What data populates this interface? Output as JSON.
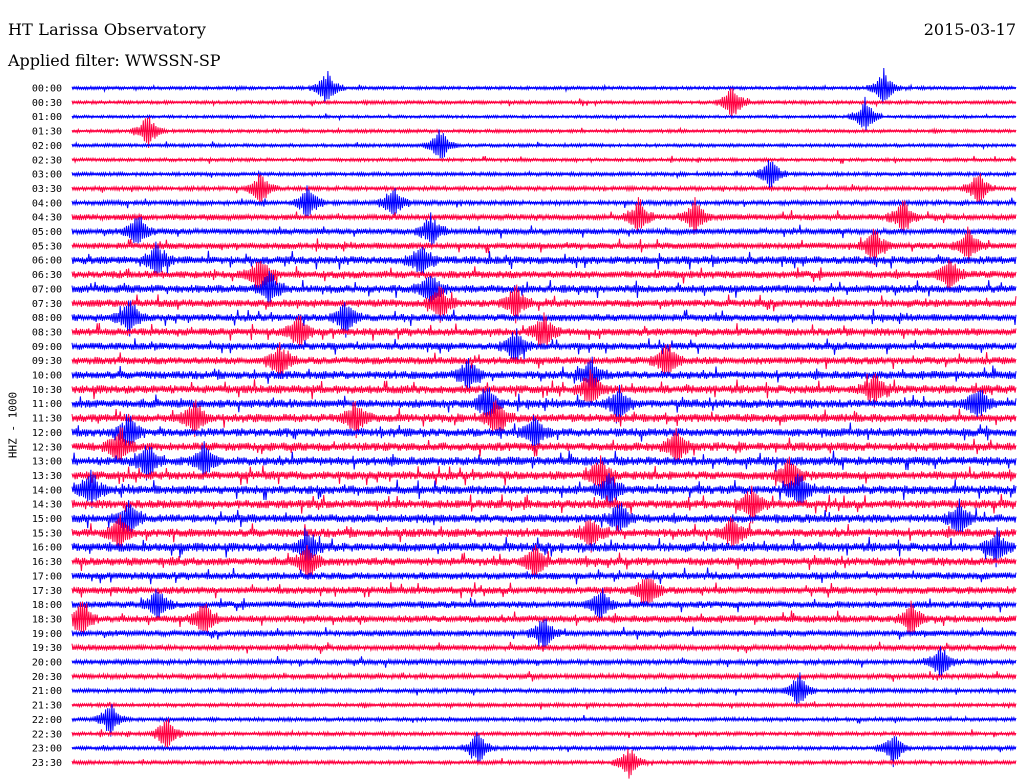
{
  "header": {
    "station": "HT Larissa Observatory",
    "date": "2015-03-17",
    "filter": "Applied filter: WWSSN-SP"
  },
  "colors": {
    "odd_trace": "#0000ff",
    "even_trace": "#ff0040",
    "background": "#ffffff"
  },
  "chart_data": {
    "type": "line",
    "kind": "helicorder",
    "channel_label": "HHZ - 1000",
    "rows": [
      {
        "time": "00:00",
        "color": "blue",
        "activity": 0.25,
        "events": [
          0.27,
          0.86
        ]
      },
      {
        "time": "00:30",
        "color": "red",
        "activity": 0.25,
        "events": [
          0.7
        ]
      },
      {
        "time": "01:00",
        "color": "blue",
        "activity": 0.2,
        "events": [
          0.84
        ]
      },
      {
        "time": "01:30",
        "color": "red",
        "activity": 0.25,
        "events": [
          0.08
        ]
      },
      {
        "time": "02:00",
        "color": "blue",
        "activity": 0.25,
        "events": [
          0.39
        ]
      },
      {
        "time": "02:30",
        "color": "red",
        "activity": 0.25,
        "events": []
      },
      {
        "time": "03:00",
        "color": "blue",
        "activity": 0.3,
        "events": [
          0.74
        ]
      },
      {
        "time": "03:30",
        "color": "red",
        "activity": 0.35,
        "events": [
          0.2,
          0.96
        ]
      },
      {
        "time": "04:00",
        "color": "blue",
        "activity": 0.4,
        "events": [
          0.25,
          0.34
        ]
      },
      {
        "time": "04:30",
        "color": "red",
        "activity": 0.55,
        "events": [
          0.6,
          0.66,
          0.88
        ]
      },
      {
        "time": "05:00",
        "color": "blue",
        "activity": 0.55,
        "events": [
          0.07,
          0.38
        ]
      },
      {
        "time": "05:30",
        "color": "red",
        "activity": 0.6,
        "events": [
          0.85,
          0.95
        ]
      },
      {
        "time": "06:00",
        "color": "blue",
        "activity": 0.8,
        "events": [
          0.09,
          0.37
        ]
      },
      {
        "time": "06:30",
        "color": "red",
        "activity": 0.75,
        "events": [
          0.2,
          0.93
        ]
      },
      {
        "time": "07:00",
        "color": "blue",
        "activity": 0.8,
        "events": [
          0.21,
          0.38
        ]
      },
      {
        "time": "07:30",
        "color": "red",
        "activity": 0.75,
        "events": [
          0.39,
          0.47
        ]
      },
      {
        "time": "08:00",
        "color": "blue",
        "activity": 0.7,
        "events": [
          0.06,
          0.29
        ]
      },
      {
        "time": "08:30",
        "color": "red",
        "activity": 0.75,
        "events": [
          0.24,
          0.5
        ]
      },
      {
        "time": "09:00",
        "color": "blue",
        "activity": 0.7,
        "events": [
          0.47
        ]
      },
      {
        "time": "09:30",
        "color": "red",
        "activity": 0.75,
        "events": [
          0.22,
          0.63
        ]
      },
      {
        "time": "10:00",
        "color": "blue",
        "activity": 0.8,
        "events": [
          0.42,
          0.55
        ]
      },
      {
        "time": "10:30",
        "color": "red",
        "activity": 0.85,
        "events": [
          0.55,
          0.85
        ]
      },
      {
        "time": "11:00",
        "color": "blue",
        "activity": 0.85,
        "events": [
          0.44,
          0.58,
          0.96
        ]
      },
      {
        "time": "11:30",
        "color": "red",
        "activity": 0.85,
        "events": [
          0.13,
          0.3,
          0.45
        ]
      },
      {
        "time": "12:00",
        "color": "blue",
        "activity": 0.85,
        "events": [
          0.06,
          0.49
        ]
      },
      {
        "time": "12:30",
        "color": "red",
        "activity": 0.85,
        "events": [
          0.05,
          0.64
        ]
      },
      {
        "time": "13:00",
        "color": "blue",
        "activity": 0.9,
        "events": [
          0.08,
          0.14
        ]
      },
      {
        "time": "13:30",
        "color": "red",
        "activity": 0.85,
        "events": [
          0.56,
          0.76
        ]
      },
      {
        "time": "14:00",
        "color": "blue",
        "activity": 0.9,
        "events": [
          0.02,
          0.57,
          0.77
        ]
      },
      {
        "time": "14:30",
        "color": "red",
        "activity": 0.85,
        "events": [
          0.72
        ]
      },
      {
        "time": "15:00",
        "color": "blue",
        "activity": 0.85,
        "events": [
          0.06,
          0.58,
          0.94
        ]
      },
      {
        "time": "15:30",
        "color": "red",
        "activity": 0.85,
        "events": [
          0.05,
          0.55,
          0.7
        ]
      },
      {
        "time": "16:00",
        "color": "blue",
        "activity": 0.9,
        "events": [
          0.25,
          0.98
        ]
      },
      {
        "time": "16:30",
        "color": "red",
        "activity": 0.8,
        "events": [
          0.25,
          0.49
        ]
      },
      {
        "time": "17:00",
        "color": "blue",
        "activity": 0.7,
        "events": []
      },
      {
        "time": "17:30",
        "color": "red",
        "activity": 0.7,
        "events": [
          0.61
        ]
      },
      {
        "time": "18:00",
        "color": "blue",
        "activity": 0.65,
        "events": [
          0.09,
          0.56
        ]
      },
      {
        "time": "18:30",
        "color": "red",
        "activity": 0.7,
        "events": [
          0.01,
          0.14,
          0.89
        ]
      },
      {
        "time": "19:00",
        "color": "blue",
        "activity": 0.55,
        "events": [
          0.5
        ]
      },
      {
        "time": "19:30",
        "color": "red",
        "activity": 0.5,
        "events": []
      },
      {
        "time": "20:00",
        "color": "blue",
        "activity": 0.45,
        "events": [
          0.92
        ]
      },
      {
        "time": "20:30",
        "color": "red",
        "activity": 0.45,
        "events": []
      },
      {
        "time": "21:00",
        "color": "blue",
        "activity": 0.35,
        "events": [
          0.77
        ]
      },
      {
        "time": "21:30",
        "color": "red",
        "activity": 0.3,
        "events": []
      },
      {
        "time": "22:00",
        "color": "blue",
        "activity": 0.3,
        "events": [
          0.04
        ]
      },
      {
        "time": "22:30",
        "color": "red",
        "activity": 0.3,
        "events": [
          0.1
        ]
      },
      {
        "time": "23:00",
        "color": "blue",
        "activity": 0.3,
        "events": [
          0.43,
          0.87
        ]
      },
      {
        "time": "23:30",
        "color": "red",
        "activity": 0.3,
        "events": [
          0.59
        ]
      }
    ]
  }
}
